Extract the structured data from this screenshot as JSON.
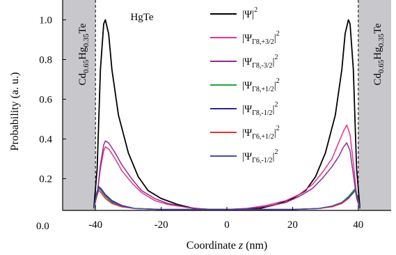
{
  "chart_data": {
    "type": "line",
    "xlabel": "Coordinate z (nm)",
    "xlabel_prefix": "Coordinate ",
    "xlabel_var": "z",
    "xlabel_unit": " (nm)",
    "ylabel": "Probability (a. u.)",
    "xlim": [
      -50,
      50
    ],
    "ylim": [
      0.04,
      1.1
    ],
    "xticks": [
      -40,
      -20,
      0,
      20,
      40
    ],
    "xtick_labels": [
      "-40",
      "-20",
      "0",
      "20",
      "40"
    ],
    "yticks": [
      0.2,
      0.4,
      0.6,
      0.8,
      1.0
    ],
    "ytick_labels": [
      "0.2",
      "0.4",
      "0.6",
      "0.8",
      "1.0"
    ],
    "corner_label": "0.0",
    "barrier_left": -40,
    "barrier_right": 40,
    "barrier_color": "#c8c8cc",
    "region_labels": {
      "left_barrier": {
        "base": "Cd",
        "s1": "0.65",
        "mid": "Hg",
        "s2": "0.35",
        "end": "Te"
      },
      "right_barrier": {
        "base": "Cd",
        "s1": "0.65",
        "mid": "Hg",
        "s2": "0.35",
        "end": "Te"
      },
      "well": "HgTe"
    },
    "series": [
      {
        "legend": {
          "main": "Ψ",
          "sub": "",
          "sup": "2"
        },
        "color": "#000000",
        "points": [
          [
            -40.5,
            0.05
          ],
          [
            -39.5,
            0.25
          ],
          [
            -38.5,
            0.75
          ],
          [
            -37.5,
            0.98
          ],
          [
            -37,
            1.0
          ],
          [
            -36,
            0.93
          ],
          [
            -35,
            0.75
          ],
          [
            -33,
            0.52
          ],
          [
            -30,
            0.33
          ],
          [
            -27,
            0.21
          ],
          [
            -24,
            0.14
          ],
          [
            -20,
            0.1
          ],
          [
            -15,
            0.07
          ],
          [
            -10,
            0.05
          ],
          [
            -5,
            0.045
          ],
          [
            0,
            0.045
          ],
          [
            5,
            0.045
          ],
          [
            10,
            0.05
          ],
          [
            15,
            0.07
          ],
          [
            20,
            0.1
          ],
          [
            24,
            0.14
          ],
          [
            27,
            0.21
          ],
          [
            30,
            0.33
          ],
          [
            33,
            0.52
          ],
          [
            35,
            0.75
          ],
          [
            36,
            0.93
          ],
          [
            37,
            1.0
          ],
          [
            37.5,
            0.98
          ],
          [
            38.5,
            0.75
          ],
          [
            39.5,
            0.25
          ],
          [
            40.5,
            0.05
          ]
        ]
      },
      {
        "legend": {
          "main": "Ψ",
          "sub": "Γ8,+3/2",
          "sup": "2"
        },
        "color": "#e8308f",
        "points": [
          [
            -40.5,
            0.05
          ],
          [
            -39.5,
            0.12
          ],
          [
            -38.5,
            0.25
          ],
          [
            -37.5,
            0.34
          ],
          [
            -37,
            0.36
          ],
          [
            -36,
            0.35
          ],
          [
            -34,
            0.3
          ],
          [
            -32,
            0.24
          ],
          [
            -29,
            0.18
          ],
          [
            -26,
            0.13
          ],
          [
            -22,
            0.09
          ],
          [
            -18,
            0.07
          ],
          [
            -12,
            0.055
          ],
          [
            -6,
            0.045
          ],
          [
            0,
            0.045
          ],
          [
            6,
            0.05
          ],
          [
            12,
            0.065
          ],
          [
            18,
            0.09
          ],
          [
            22,
            0.12
          ],
          [
            26,
            0.17
          ],
          [
            29,
            0.23
          ],
          [
            32,
            0.3
          ],
          [
            34,
            0.38
          ],
          [
            35.5,
            0.44
          ],
          [
            36.5,
            0.47
          ],
          [
            37.5,
            0.42
          ],
          [
            38.5,
            0.28
          ],
          [
            39.5,
            0.12
          ],
          [
            40.5,
            0.05
          ]
        ]
      },
      {
        "legend": {
          "main": "Ψ",
          "sub": "Γ8,-3/2",
          "sup": "2"
        },
        "color": "#8e2a96",
        "points": [
          [
            -40.5,
            0.05
          ],
          [
            -39.5,
            0.12
          ],
          [
            -38.5,
            0.27
          ],
          [
            -37.5,
            0.37
          ],
          [
            -37,
            0.39
          ],
          [
            -36,
            0.38
          ],
          [
            -34,
            0.33
          ],
          [
            -32,
            0.27
          ],
          [
            -29,
            0.2
          ],
          [
            -26,
            0.14
          ],
          [
            -22,
            0.1
          ],
          [
            -18,
            0.075
          ],
          [
            -12,
            0.055
          ],
          [
            -6,
            0.045
          ],
          [
            0,
            0.045
          ],
          [
            6,
            0.05
          ],
          [
            12,
            0.06
          ],
          [
            18,
            0.08
          ],
          [
            22,
            0.11
          ],
          [
            26,
            0.15
          ],
          [
            29,
            0.2
          ],
          [
            32,
            0.26
          ],
          [
            34,
            0.31
          ],
          [
            35.5,
            0.36
          ],
          [
            36.5,
            0.38
          ],
          [
            37.5,
            0.34
          ],
          [
            38.5,
            0.22
          ],
          [
            39.5,
            0.1
          ],
          [
            40.5,
            0.05
          ]
        ]
      },
      {
        "legend": {
          "main": "Ψ",
          "sub": "Γ8,+1/2",
          "sup": "2"
        },
        "color": "#22a33b",
        "points": [
          [
            -40.5,
            0.05
          ],
          [
            -39.8,
            0.1
          ],
          [
            -39,
            0.15
          ],
          [
            -38.3,
            0.14
          ],
          [
            -37,
            0.11
          ],
          [
            -35,
            0.08
          ],
          [
            -32,
            0.06
          ],
          [
            -28,
            0.05
          ],
          [
            -20,
            0.045
          ],
          [
            0,
            0.045
          ],
          [
            20,
            0.045
          ],
          [
            28,
            0.05
          ],
          [
            32,
            0.06
          ],
          [
            35,
            0.08
          ],
          [
            37,
            0.11
          ],
          [
            38.3,
            0.135
          ],
          [
            39,
            0.15
          ],
          [
            39.8,
            0.11
          ],
          [
            40.5,
            0.05
          ]
        ]
      },
      {
        "legend": {
          "main": "Ψ",
          "sub": "Γ8,-1/2",
          "sup": "2"
        },
        "color": "#1f2f8e",
        "points": [
          [
            -40.5,
            0.05
          ],
          [
            -39.8,
            0.12
          ],
          [
            -39,
            0.16
          ],
          [
            -38.3,
            0.15
          ],
          [
            -37,
            0.12
          ],
          [
            -35,
            0.09
          ],
          [
            -32,
            0.065
          ],
          [
            -28,
            0.05
          ],
          [
            -20,
            0.045
          ],
          [
            0,
            0.045
          ],
          [
            20,
            0.045
          ],
          [
            28,
            0.05
          ],
          [
            32,
            0.06
          ],
          [
            35,
            0.08
          ],
          [
            37,
            0.1
          ],
          [
            38.3,
            0.125
          ],
          [
            39,
            0.14
          ],
          [
            39.8,
            0.1
          ],
          [
            40.5,
            0.05
          ]
        ]
      },
      {
        "legend": {
          "main": "Ψ",
          "sub": "Γ6,+1/2",
          "sup": "2"
        },
        "color": "#e53030",
        "points": [
          [
            -40.5,
            0.05
          ],
          [
            -39.8,
            0.1
          ],
          [
            -39,
            0.14
          ],
          [
            -38.3,
            0.13
          ],
          [
            -37,
            0.1
          ],
          [
            -35,
            0.075
          ],
          [
            -32,
            0.058
          ],
          [
            -28,
            0.05
          ],
          [
            -20,
            0.045
          ],
          [
            0,
            0.045
          ],
          [
            20,
            0.045
          ],
          [
            28,
            0.05
          ],
          [
            32,
            0.058
          ],
          [
            35,
            0.075
          ],
          [
            37,
            0.1
          ],
          [
            38.3,
            0.13
          ],
          [
            39,
            0.14
          ],
          [
            39.8,
            0.1
          ],
          [
            40.5,
            0.05
          ]
        ]
      },
      {
        "legend": {
          "main": "Ψ",
          "sub": "Γ6,-1/2",
          "sup": "2"
        },
        "color": "#4a4aa8",
        "points": [
          [
            -40.5,
            0.05
          ],
          [
            -39.8,
            0.11
          ],
          [
            -39,
            0.155
          ],
          [
            -38.3,
            0.145
          ],
          [
            -37,
            0.115
          ],
          [
            -35,
            0.085
          ],
          [
            -32,
            0.062
          ],
          [
            -28,
            0.05
          ],
          [
            -20,
            0.045
          ],
          [
            0,
            0.045
          ],
          [
            20,
            0.045
          ],
          [
            28,
            0.05
          ],
          [
            32,
            0.062
          ],
          [
            35,
            0.08
          ],
          [
            37,
            0.105
          ],
          [
            38.3,
            0.13
          ],
          [
            39,
            0.145
          ],
          [
            39.8,
            0.105
          ],
          [
            40.5,
            0.05
          ]
        ]
      }
    ]
  }
}
